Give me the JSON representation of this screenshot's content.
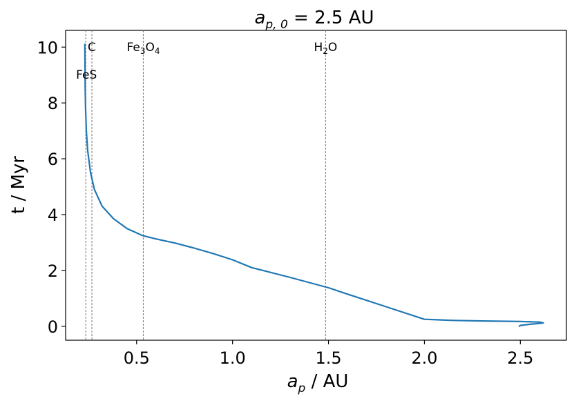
{
  "chart_data": {
    "type": "line",
    "title_parts": {
      "var": "a",
      "sub": "p, 0",
      "rest": " = 2.5 AU"
    },
    "xlabel_parts": {
      "var": "a",
      "sub": "p",
      "rest": " / AU"
    },
    "ylabel": "t / Myr",
    "xlim": [
      0.13,
      2.74
    ],
    "ylim": [
      -0.5,
      10.6
    ],
    "xticks": [
      0.5,
      1.0,
      1.5,
      2.0,
      2.5
    ],
    "xtick_labels": [
      "0.5",
      "1.0",
      "1.5",
      "2.0",
      "2.5"
    ],
    "yticks": [
      0,
      2,
      4,
      6,
      8,
      10
    ],
    "ytick_labels": [
      "0",
      "2",
      "4",
      "6",
      "8",
      "10"
    ],
    "grid": false,
    "series": [
      {
        "color": "#1f77b4",
        "x": [
          2.495,
          2.5,
          2.55,
          2.6,
          2.62,
          2.6,
          2.5,
          2.3,
          2.15,
          2.0,
          1.8,
          1.6,
          1.5,
          1.3,
          1.1,
          1.0,
          0.9,
          0.8,
          0.7,
          0.6,
          0.53,
          0.45,
          0.38,
          0.32,
          0.28,
          0.26,
          0.245,
          0.238,
          0.234,
          0.232,
          0.231,
          0.23
        ],
        "y": [
          0.0,
          0.03,
          0.07,
          0.1,
          0.12,
          0.15,
          0.17,
          0.19,
          0.21,
          0.25,
          0.7,
          1.15,
          1.38,
          1.75,
          2.1,
          2.38,
          2.6,
          2.8,
          2.98,
          3.13,
          3.25,
          3.5,
          3.85,
          4.3,
          4.9,
          5.5,
          6.3,
          7.0,
          7.8,
          8.6,
          9.4,
          10.1
        ]
      }
    ],
    "ice_lines": [
      {
        "x": 0.235,
        "label": "FeS"
      },
      {
        "x": 0.267,
        "label": "C"
      },
      {
        "x": 0.535,
        "label": "Fe3O4"
      },
      {
        "x": 1.485,
        "label": "H2O"
      }
    ],
    "line_color": "#808080"
  }
}
